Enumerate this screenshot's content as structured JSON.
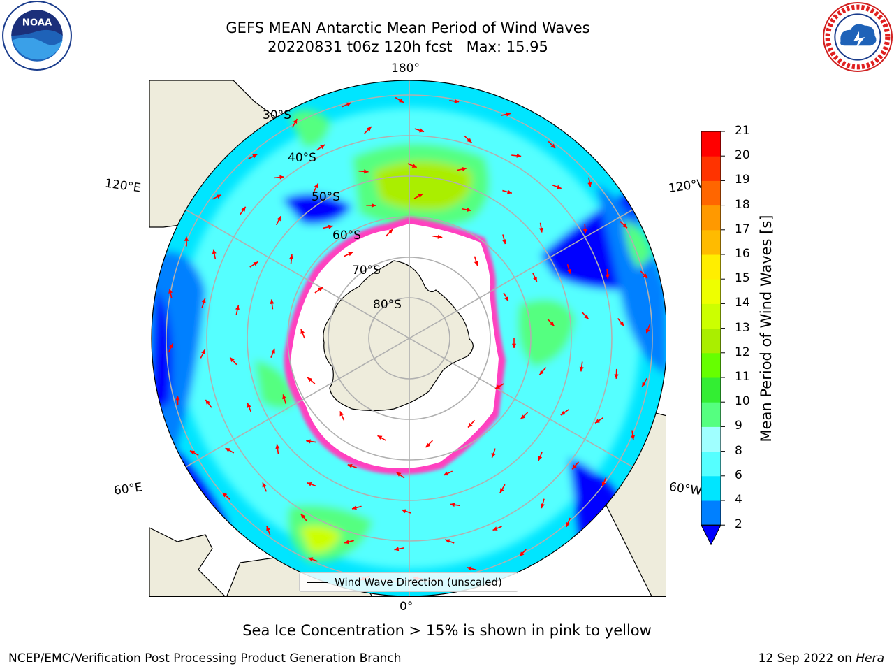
{
  "title": {
    "line1": "GEFS MEAN Antarctic Mean Period of Wind Waves",
    "line2": "20220831 t06z 120h fcst   Max: 15.95"
  },
  "map": {
    "projection": "south polar stereographic",
    "longitude_labels": {
      "top": "180°",
      "upper_left": "120°E",
      "upper_right": "120°W",
      "lower_left": "60°E",
      "lower_right": "60°W",
      "bottom": "0°"
    },
    "latitude_labels": [
      "30°S",
      "40°S",
      "50°S",
      "60°S",
      "70°S",
      "80°S"
    ],
    "legend": "Wind Wave Direction (unscaled)",
    "arrow_color": "#ff0000",
    "land_color": "#eeecdc",
    "sea_ice_color": "#ff40c0"
  },
  "colorbar": {
    "label": "Mean Period of Wind Waves [s]",
    "ticks": [
      "2",
      "4",
      "6",
      "8",
      "9",
      "10",
      "11",
      "12",
      "13",
      "14",
      "15",
      "16",
      "17",
      "18",
      "19",
      "20",
      "21"
    ],
    "colors": [
      "#0000ff",
      "#0080ff",
      "#00e5ff",
      "#55ffff",
      "#a0ffff",
      "#55ff80",
      "#33ee33",
      "#66ff00",
      "#aaee00",
      "#ccff00",
      "#eeff00",
      "#ffee00",
      "#ffbb00",
      "#ff9900",
      "#ff6600",
      "#ff3300",
      "#ff0000"
    ],
    "extend_color": "#0000ff"
  },
  "notes": {
    "sea_ice": "Sea Ice Concentration > 15% is shown in pink to yellow",
    "credit": "NCEP/EMC/Verification Post Processing Product Generation Branch",
    "date_prefix": "12 Sep 2022 on ",
    "date_machine": "Hera"
  },
  "logos": {
    "noaa_text": "NOAA",
    "nws_text": "NATIONAL WEATHER SERVICE"
  }
}
